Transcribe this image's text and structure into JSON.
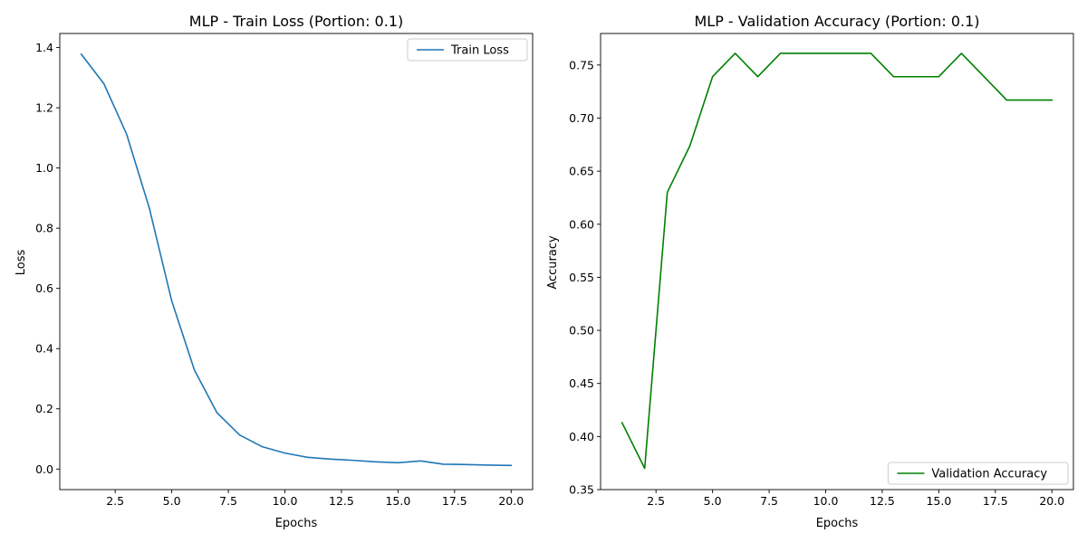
{
  "chart_data": [
    {
      "type": "line",
      "title": "MLP - Train Loss (Portion: 0.1)",
      "xlabel": "Epochs",
      "ylabel": "Loss",
      "xlim": [
        0.05,
        20.95
      ],
      "ylim": [
        -0.0683,
        1.4468
      ],
      "xticks": [
        2.5,
        5.0,
        7.5,
        10.0,
        12.5,
        15.0,
        17.5,
        20.0
      ],
      "xtick_labels": [
        "2.5",
        "5.0",
        "7.5",
        "10.0",
        "12.5",
        "15.0",
        "17.5",
        "20.0"
      ],
      "yticks": [
        0.0,
        0.2,
        0.4,
        0.6,
        0.8,
        1.0,
        1.2,
        1.4
      ],
      "ytick_labels": [
        "0.0",
        "0.2",
        "0.4",
        "0.6",
        "0.8",
        "1.0",
        "1.2",
        "1.4"
      ],
      "grid": false,
      "legend_position": "upper right",
      "x": [
        1,
        2,
        3,
        4,
        5,
        6,
        7,
        8,
        9,
        10,
        11,
        12,
        13,
        14,
        15,
        16,
        17,
        18,
        19,
        20
      ],
      "series": [
        {
          "name": "Train Loss",
          "color": "#1f77b4",
          "values": [
            1.378,
            1.28,
            1.113,
            0.869,
            0.558,
            0.329,
            0.187,
            0.113,
            0.074,
            0.053,
            0.039,
            0.033,
            0.029,
            0.024,
            0.021,
            0.027,
            0.016,
            0.015,
            0.013,
            0.012
          ]
        }
      ]
    },
    {
      "type": "line",
      "title": "MLP - Validation Accuracy (Portion: 0.1)",
      "xlabel": "Epochs",
      "ylabel": "Accuracy",
      "xlim": [
        0.05,
        20.95
      ],
      "ylim": [
        0.35,
        0.7797
      ],
      "xticks": [
        2.5,
        5.0,
        7.5,
        10.0,
        12.5,
        15.0,
        17.5,
        20.0
      ],
      "xtick_labels": [
        "2.5",
        "5.0",
        "7.5",
        "10.0",
        "12.5",
        "15.0",
        "17.5",
        "20.0"
      ],
      "yticks": [
        0.35,
        0.4,
        0.45,
        0.5,
        0.55,
        0.6,
        0.65,
        0.7,
        0.75
      ],
      "ytick_labels": [
        "0.35",
        "0.40",
        "0.45",
        "0.50",
        "0.55",
        "0.60",
        "0.65",
        "0.70",
        "0.75"
      ],
      "grid": false,
      "legend_position": "lower right",
      "x": [
        1,
        2,
        3,
        4,
        5,
        6,
        7,
        8,
        9,
        10,
        11,
        12,
        13,
        14,
        15,
        16,
        17,
        18,
        19,
        20
      ],
      "series": [
        {
          "name": "Validation Accuracy",
          "color": "#008000",
          "values": [
            0.413,
            0.37,
            0.63,
            0.674,
            0.739,
            0.761,
            0.739,
            0.761,
            0.761,
            0.761,
            0.761,
            0.761,
            0.739,
            0.739,
            0.739,
            0.761,
            0.739,
            0.717,
            0.717,
            0.717
          ]
        }
      ]
    }
  ]
}
